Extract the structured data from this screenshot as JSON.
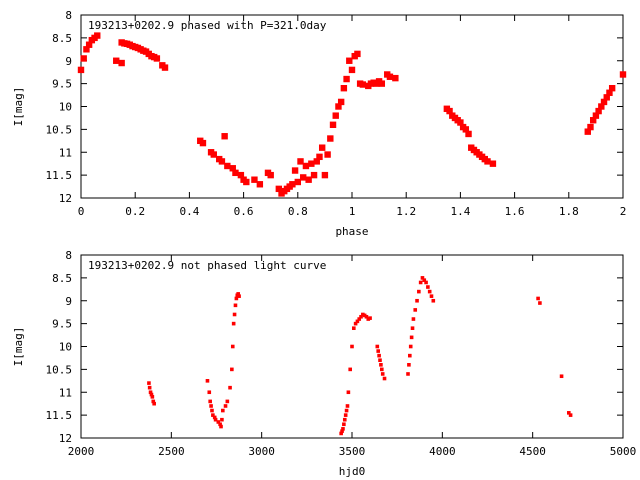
{
  "chart_data": [
    {
      "type": "scatter",
      "title": "193213+0202.9 phased with P=321.0day",
      "xlabel": "phase",
      "ylabel": "I[mag]",
      "xlim": [
        0,
        2
      ],
      "ylim": [
        8,
        12
      ],
      "y_inverted": true,
      "x_ticks": [
        "0",
        "0.2",
        "0.4",
        "0.6",
        "0.8",
        "1",
        "1.2",
        "1.4",
        "1.6",
        "1.8",
        "2"
      ],
      "y_ticks": [
        "8",
        "8.5",
        "9",
        "9.5",
        "10",
        "10.5",
        "11",
        "11.5",
        "12"
      ],
      "grid": false,
      "marker_color": "#ff0000",
      "series": [
        {
          "x": [
            0.0,
            0.01,
            0.02,
            0.03,
            0.04,
            0.05,
            0.06,
            0.13,
            0.15,
            0.15,
            0.16,
            0.17,
            0.18,
            0.19,
            0.2,
            0.21,
            0.22,
            0.23,
            0.24,
            0.25,
            0.26,
            0.27,
            0.28,
            0.3,
            0.31,
            0.44,
            0.45,
            0.48,
            0.49,
            0.51,
            0.52,
            0.53,
            0.54,
            0.56,
            0.57,
            0.59,
            0.6,
            0.61,
            0.64,
            0.66,
            0.69,
            0.7,
            0.73,
            0.74,
            0.75,
            0.76,
            0.77,
            0.78,
            0.79,
            0.8,
            0.81,
            0.82,
            0.83,
            0.84,
            0.85,
            0.86,
            0.87,
            0.88,
            0.89,
            0.9,
            0.91,
            0.92,
            0.93,
            0.94,
            0.95,
            0.96,
            0.97,
            0.98,
            0.99,
            1.0,
            1.01,
            1.02,
            1.03,
            1.04,
            1.06,
            1.07,
            1.08,
            1.09,
            1.1,
            1.11,
            1.13,
            1.14,
            1.16,
            1.35,
            1.36,
            1.37,
            1.38,
            1.39,
            1.4,
            1.41,
            1.42,
            1.43,
            1.44,
            1.45,
            1.46,
            1.47,
            1.48,
            1.49,
            1.5,
            1.52,
            1.87,
            1.88,
            1.89,
            1.9,
            1.91,
            1.92,
            1.93,
            1.94,
            1.95,
            1.96,
            2.0
          ],
          "y": [
            9.2,
            8.95,
            8.75,
            8.65,
            8.55,
            8.5,
            8.45,
            9.0,
            8.6,
            9.05,
            8.62,
            8.63,
            8.65,
            8.68,
            8.7,
            8.72,
            8.75,
            8.78,
            8.8,
            8.85,
            8.9,
            8.92,
            8.95,
            9.1,
            9.15,
            10.75,
            10.8,
            11.0,
            11.05,
            11.15,
            11.2,
            10.65,
            11.3,
            11.35,
            11.45,
            11.5,
            11.6,
            11.65,
            11.6,
            11.7,
            11.45,
            11.5,
            11.8,
            11.9,
            11.85,
            11.8,
            11.75,
            11.7,
            11.4,
            11.65,
            11.2,
            11.55,
            11.3,
            11.6,
            11.25,
            11.5,
            11.2,
            11.1,
            10.9,
            11.5,
            11.05,
            10.7,
            10.4,
            10.2,
            10.0,
            9.9,
            9.6,
            9.4,
            9.0,
            9.2,
            8.9,
            8.85,
            9.5,
            9.52,
            9.55,
            9.5,
            9.48,
            9.5,
            9.45,
            9.5,
            9.3,
            9.35,
            9.38,
            10.05,
            10.1,
            10.2,
            10.25,
            10.3,
            10.35,
            10.45,
            10.5,
            10.6,
            10.9,
            10.95,
            11.0,
            11.05,
            11.1,
            11.15,
            11.2,
            11.25,
            10.55,
            10.45,
            10.3,
            10.2,
            10.1,
            10.0,
            9.9,
            9.8,
            9.7,
            9.6,
            9.3
          ]
        }
      ]
    },
    {
      "type": "scatter",
      "title": "193213+0202.9 not phased light curve",
      "xlabel": "hjd0",
      "ylabel": "I[mag]",
      "xlim": [
        2000,
        5000
      ],
      "ylim": [
        8,
        12
      ],
      "y_inverted": true,
      "x_ticks": [
        "2000",
        "2500",
        "3000",
        "3500",
        "4000",
        "4500",
        "5000"
      ],
      "y_ticks": [
        "8",
        "8.5",
        "9",
        "9.5",
        "10",
        "10.5",
        "11",
        "11.5",
        "12"
      ],
      "grid": false,
      "marker_color": "#ff0000",
      "series": [
        {
          "x": [
            2376,
            2380,
            2385,
            2390,
            2395,
            2400,
            2405,
            2700,
            2710,
            2715,
            2720,
            2725,
            2730,
            2740,
            2745,
            2760,
            2770,
            2775,
            2780,
            2785,
            2800,
            2810,
            2825,
            2835,
            2840,
            2845,
            2850,
            2855,
            2860,
            2865,
            2870,
            2875,
            3440,
            3445,
            3450,
            3455,
            3460,
            3465,
            3470,
            3475,
            3480,
            3490,
            3500,
            3510,
            3520,
            3530,
            3540,
            3550,
            3560,
            3570,
            3580,
            3590,
            3600,
            3640,
            3645,
            3650,
            3655,
            3660,
            3665,
            3670,
            3680,
            3810,
            3815,
            3820,
            3825,
            3830,
            3835,
            3840,
            3850,
            3860,
            3870,
            3880,
            3890,
            3900,
            3910,
            3920,
            3930,
            3940,
            3950,
            4530,
            4540,
            4660,
            4700,
            4710
          ],
          "y": [
            10.8,
            10.9,
            11.0,
            11.05,
            11.1,
            11.2,
            11.25,
            10.75,
            11.0,
            11.2,
            11.3,
            11.4,
            11.5,
            11.55,
            11.6,
            11.65,
            11.7,
            11.75,
            11.6,
            11.4,
            11.3,
            11.2,
            10.9,
            10.5,
            10.0,
            9.5,
            9.3,
            9.1,
            8.95,
            8.88,
            8.85,
            8.9,
            11.9,
            11.85,
            11.8,
            11.7,
            11.6,
            11.5,
            11.4,
            11.3,
            11.0,
            10.5,
            10.0,
            9.6,
            9.5,
            9.45,
            9.4,
            9.35,
            9.3,
            9.32,
            9.35,
            9.4,
            9.38,
            10.0,
            10.1,
            10.2,
            10.3,
            10.4,
            10.5,
            10.6,
            10.7,
            10.6,
            10.4,
            10.2,
            10.0,
            9.8,
            9.6,
            9.4,
            9.2,
            9.0,
            8.8,
            8.6,
            8.5,
            8.55,
            8.6,
            8.7,
            8.8,
            8.9,
            9.0,
            8.95,
            9.05,
            10.65,
            11.45,
            11.5
          ]
        }
      ]
    }
  ]
}
